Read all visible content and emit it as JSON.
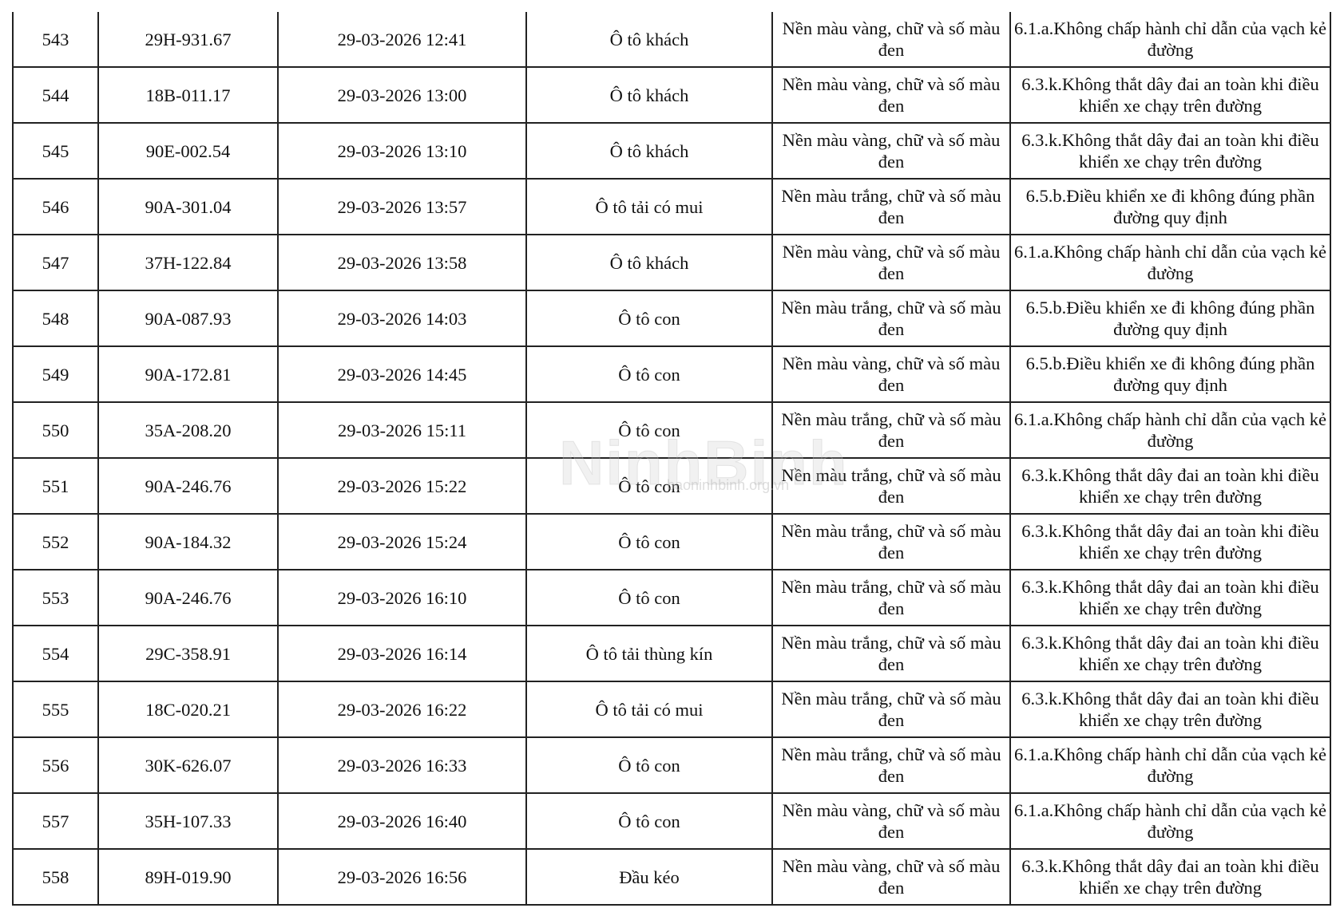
{
  "watermark": {
    "logo": "NinhBinh",
    "site": "baoninhbinh.org.vn"
  },
  "rows": [
    {
      "stt": "543",
      "plate": "29H-931.67",
      "time": "29-03-2026 12:41",
      "vehicle": "Ô tô khách",
      "plate_color": "Nền màu vàng, chữ và số màu đen",
      "violation": "6.1.a.Không chấp hành chỉ dẫn của vạch kẻ đường"
    },
    {
      "stt": "544",
      "plate": "18B-011.17",
      "time": "29-03-2026 13:00",
      "vehicle": "Ô tô khách",
      "plate_color": "Nền màu vàng, chữ và số màu đen",
      "violation": "6.3.k.Không thắt dây đai an toàn khi điều khiển xe chạy trên đường"
    },
    {
      "stt": "545",
      "plate": "90E-002.54",
      "time": "29-03-2026 13:10",
      "vehicle": "Ô tô khách",
      "plate_color": "Nền màu vàng, chữ và số màu đen",
      "violation": "6.3.k.Không thắt dây đai an toàn khi điều khiển xe chạy trên đường"
    },
    {
      "stt": "546",
      "plate": "90A-301.04",
      "time": "29-03-2026 13:57",
      "vehicle": "Ô tô tải có mui",
      "plate_color": "Nền màu trắng, chữ và số màu đen",
      "violation": "6.5.b.Điều khiển xe đi không đúng phần đường quy định"
    },
    {
      "stt": "547",
      "plate": "37H-122.84",
      "time": "29-03-2026 13:58",
      "vehicle": "Ô tô khách",
      "plate_color": "Nền màu vàng, chữ và số màu đen",
      "violation": "6.1.a.Không chấp hành chỉ dẫn của vạch kẻ đường"
    },
    {
      "stt": "548",
      "plate": "90A-087.93",
      "time": "29-03-2026 14:03",
      "vehicle": "Ô tô con",
      "plate_color": "Nền màu trắng, chữ và số màu đen",
      "violation": "6.5.b.Điều khiển xe đi không đúng phần đường quy định"
    },
    {
      "stt": "549",
      "plate": "90A-172.81",
      "time": "29-03-2026 14:45",
      "vehicle": "Ô tô con",
      "plate_color": "Nền màu vàng, chữ và số màu đen",
      "violation": "6.5.b.Điều khiển xe đi không đúng phần đường quy định"
    },
    {
      "stt": "550",
      "plate": "35A-208.20",
      "time": "29-03-2026 15:11",
      "vehicle": "Ô tô con",
      "plate_color": "Nền màu trắng, chữ và số màu đen",
      "violation": "6.1.a.Không chấp hành chỉ dẫn của vạch kẻ đường"
    },
    {
      "stt": "551",
      "plate": "90A-246.76",
      "time": "29-03-2026 15:22",
      "vehicle": "Ô tô con",
      "plate_color": "Nền màu trắng, chữ và số màu đen",
      "violation": "6.3.k.Không thắt dây đai an toàn khi điều khiển xe chạy trên đường"
    },
    {
      "stt": "552",
      "plate": "90A-184.32",
      "time": "29-03-2026 15:24",
      "vehicle": "Ô tô con",
      "plate_color": "Nền màu trắng, chữ và số màu đen",
      "violation": "6.3.k.Không thắt dây đai an toàn khi điều khiển xe chạy trên đường"
    },
    {
      "stt": "553",
      "plate": "90A-246.76",
      "time": "29-03-2026 16:10",
      "vehicle": "Ô tô con",
      "plate_color": "Nền màu trắng, chữ và số màu đen",
      "violation": "6.3.k.Không thắt dây đai an toàn khi điều khiển xe chạy trên đường"
    },
    {
      "stt": "554",
      "plate": "29C-358.91",
      "time": "29-03-2026 16:14",
      "vehicle": "Ô tô tải thùng kín",
      "plate_color": "Nền màu trắng, chữ và số màu đen",
      "violation": "6.3.k.Không thắt dây đai an toàn khi điều khiển xe chạy trên đường"
    },
    {
      "stt": "555",
      "plate": "18C-020.21",
      "time": "29-03-2026 16:22",
      "vehicle": "Ô tô tải có mui",
      "plate_color": "Nền màu trắng, chữ và số màu đen",
      "violation": "6.3.k.Không thắt dây đai an toàn khi điều khiển xe chạy trên đường"
    },
    {
      "stt": "556",
      "plate": "30K-626.07",
      "time": "29-03-2026 16:33",
      "vehicle": "Ô tô con",
      "plate_color": "Nền màu trắng, chữ và số màu đen",
      "violation": "6.1.a.Không chấp hành chỉ dẫn của vạch kẻ đường"
    },
    {
      "stt": "557",
      "plate": "35H-107.33",
      "time": "29-03-2026 16:40",
      "vehicle": "Ô tô con",
      "plate_color": "Nền màu vàng, chữ và số màu đen",
      "violation": "6.1.a.Không chấp hành chỉ dẫn của vạch kẻ đường"
    },
    {
      "stt": "558",
      "plate": "89H-019.90",
      "time": "29-03-2026 16:56",
      "vehicle": "Đầu kéo",
      "plate_color": "Nền màu vàng, chữ và số màu đen",
      "violation": "6.3.k.Không thắt dây đai an toàn khi điều khiển xe chạy trên đường"
    }
  ]
}
